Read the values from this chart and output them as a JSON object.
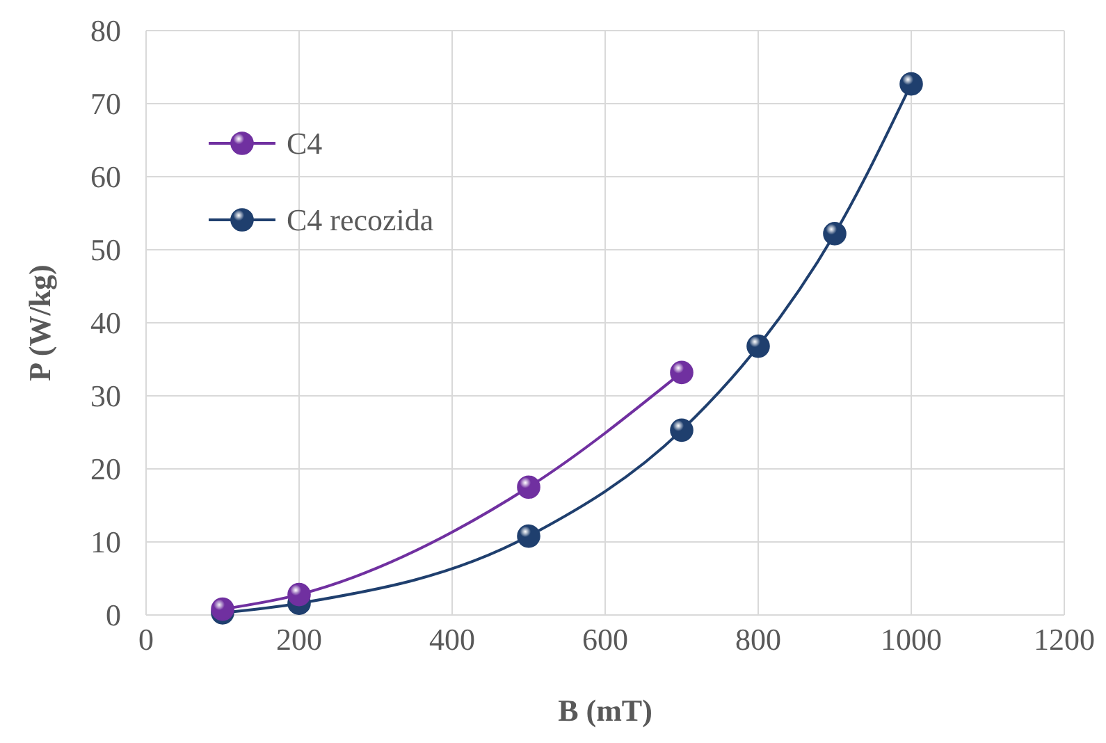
{
  "chart_data": {
    "type": "line",
    "xlabel": "B (mT)",
    "ylabel": "P (W/kg)",
    "xlim": [
      0,
      1200
    ],
    "xticks": [
      0,
      200,
      400,
      600,
      800,
      1000,
      1200
    ],
    "ylim": [
      0,
      80
    ],
    "yticks": [
      0,
      10,
      20,
      30,
      40,
      50,
      60,
      70,
      80
    ],
    "grid": true,
    "legend": "top left",
    "marker": "circle",
    "line_style": "solid",
    "series": [
      {
        "name": "C4",
        "color": "#7030a0",
        "x": [
          100,
          200,
          500,
          700
        ],
        "values": [
          0.8,
          2.8,
          17.5,
          33.2
        ]
      },
      {
        "name": "C4 recozida",
        "color": "#1f3f6e",
        "x": [
          100,
          200,
          500,
          700,
          800,
          900,
          1000
        ],
        "values": [
          0.3,
          1.6,
          10.8,
          25.3,
          36.8,
          52.2,
          72.7
        ]
      }
    ]
  }
}
